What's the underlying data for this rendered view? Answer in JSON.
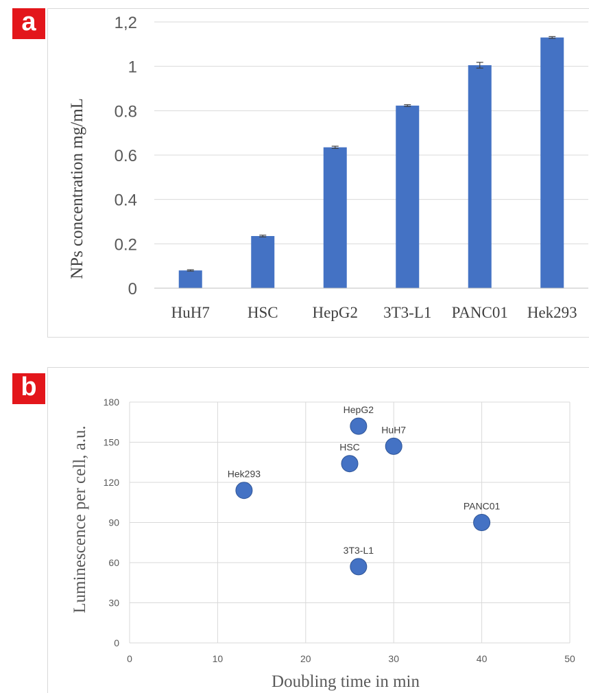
{
  "panels": {
    "a_label": "a",
    "b_label": "b"
  },
  "colors": {
    "bar": "#4472c4",
    "point": "#4472c4",
    "point_edge": "#2f5597",
    "grid": "#d9d9d9",
    "badge": "#e3161b"
  },
  "chart_data": [
    {
      "type": "bar",
      "panel": "a",
      "categories": [
        "HuH7",
        "HSC",
        "HepG2",
        "3T3-L1",
        "PANC01",
        "Hek293"
      ],
      "values": [
        0.08,
        0.235,
        0.635,
        0.823,
        1.005,
        1.13
      ],
      "errors": [
        0.003,
        0.004,
        0.005,
        0.004,
        0.013,
        0.004
      ],
      "ylabel": "NPs concentration mg/mL",
      "xlabel": "",
      "ylim": [
        0,
        1.2
      ],
      "yticks": [
        "0",
        "0.2",
        "0.4",
        "0.6",
        "0.8",
        "1",
        "1,2"
      ],
      "grid": true
    },
    {
      "type": "scatter",
      "panel": "b",
      "points": [
        {
          "label": "HepG2",
          "x": 26,
          "y": 162
        },
        {
          "label": "HuH7",
          "x": 30,
          "y": 147
        },
        {
          "label": "HSC",
          "x": 25,
          "y": 134
        },
        {
          "label": "Hek293",
          "x": 13,
          "y": 114
        },
        {
          "label": "PANC01",
          "x": 40,
          "y": 90
        },
        {
          "label": "3T3-L1",
          "x": 26,
          "y": 57
        }
      ],
      "xlabel": "Doubling time in min",
      "ylabel": "Luminescence per cell, a.u.",
      "xlim": [
        0,
        50
      ],
      "ylim": [
        0,
        180
      ],
      "xticks": [
        "0",
        "10",
        "20",
        "30",
        "40",
        "50"
      ],
      "yticks": [
        "0",
        "30",
        "60",
        "90",
        "120",
        "150",
        "180"
      ],
      "grid": true
    }
  ]
}
